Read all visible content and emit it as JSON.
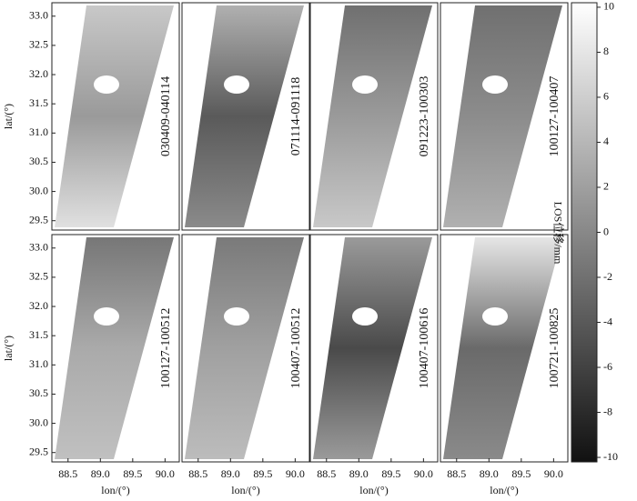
{
  "figure": {
    "panels": [
      "030409-040114",
      "071114-091118",
      "091223-100303",
      "100127-100407",
      "100127-100512",
      "100407-100512",
      "100407-100616",
      "100721-100825"
    ],
    "xlabel": "lon/(°)",
    "ylabel": "lat/(°)",
    "xlim": [
      88.25,
      90.22
    ],
    "ylim": [
      29.34,
      33.23
    ],
    "xticks": [
      88.5,
      {
        "value": 89,
        "label": "89.0"
      },
      89.5,
      {
        "value": 90,
        "label": "90.0"
      }
    ],
    "yticks": [
      29.5,
      {
        "value": 30,
        "label": "30.0"
      },
      30.5,
      {
        "value": 31,
        "label": "31.0"
      },
      31.5,
      {
        "value": 32,
        "label": "32.0"
      },
      32.5,
      {
        "value": 33,
        "label": "33.0"
      }
    ],
    "colorbar": {
      "label": "LOS位移/mm",
      "clim": [
        -10.2,
        10.2
      ],
      "ticks": [
        10,
        8,
        6,
        4,
        2,
        0,
        -2,
        -4,
        -6,
        -8,
        -10
      ]
    }
  }
}
